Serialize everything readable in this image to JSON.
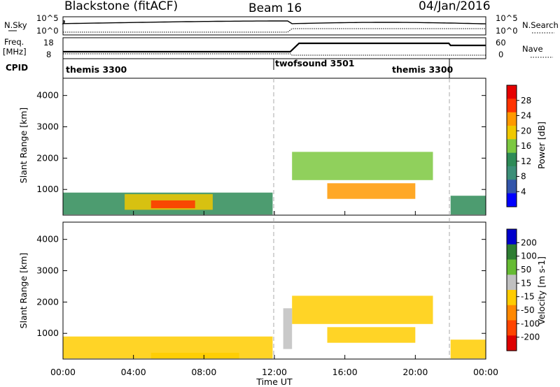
{
  "header": {
    "station": "Blackstone (fitACF)",
    "beam": "Beam 16",
    "date": "04/Jan/2016"
  },
  "noise_panel": {
    "left_label": "N.Sky",
    "left_ticks": [
      "10^5",
      "10^0"
    ],
    "right_ticks": [
      "10^5",
      "10^0"
    ],
    "right_label": "N.Search"
  },
  "freq_panel": {
    "left_label_line1": "Freq.",
    "left_label_line2": "[MHz]",
    "left_ticks": [
      "18",
      "8"
    ],
    "right_ticks": [
      "60",
      "0"
    ],
    "right_label": "Nave"
  },
  "cpid_panel": {
    "label": "CPID",
    "segments": [
      "themis 3300",
      "twofsound 3501",
      "themis 3300"
    ]
  },
  "chart_data": [
    {
      "type": "heatmap",
      "name": "power",
      "ylabel": "Slant Range [km]",
      "yticks": [
        "4000",
        "3000",
        "2000",
        "1000"
      ],
      "ylim": [
        180,
        4550
      ],
      "xlim": [
        0,
        24
      ],
      "colorbar_label": "Power [dB]",
      "colorbar_ticks": [
        "28",
        "24",
        "20",
        "16",
        "12",
        "8",
        "4"
      ],
      "colorbar_colors": [
        "#e60000",
        "#ff3300",
        "#ff9900",
        "#f0c800",
        "#7cc840",
        "#2e8b57",
        "#3c8f78",
        "#3355aa",
        "#0000ff"
      ],
      "regions": [
        {
          "t0": 0.0,
          "t1": 11.9,
          "r0": 200,
          "r1": 900,
          "level": 10
        },
        {
          "t0": 3.5,
          "t1": 8.5,
          "r0": 350,
          "r1": 850,
          "level": 18
        },
        {
          "t0": 5.0,
          "t1": 7.5,
          "r0": 400,
          "r1": 650,
          "level": 26
        },
        {
          "t0": 13.0,
          "t1": 21.0,
          "r0": 1300,
          "r1": 2200,
          "level": 16
        },
        {
          "t0": 15.0,
          "t1": 20.0,
          "r0": 700,
          "r1": 1200,
          "level": 22
        },
        {
          "t0": 22.0,
          "t1": 24.0,
          "r0": 200,
          "r1": 800,
          "level": 12
        }
      ]
    },
    {
      "type": "heatmap",
      "name": "velocity",
      "ylabel": "Slant Range [km]",
      "yticks": [
        "4000",
        "3000",
        "2000",
        "1000"
      ],
      "ylim": [
        180,
        4550
      ],
      "xlim": [
        0,
        24
      ],
      "colorbar_label": "Velocity [m s-1]",
      "colorbar_ticks": [
        "200",
        "100",
        "50",
        "15",
        "-15",
        "-50",
        "-100",
        "-200"
      ],
      "colorbar_colors": [
        "#0000cc",
        "#2e7d32",
        "#66bb33",
        "#c0c0c0",
        "#ffcc00",
        "#ff8800",
        "#ff4400",
        "#dd0000"
      ],
      "regions": [
        {
          "t0": 0.0,
          "t1": 11.9,
          "r0": 200,
          "r1": 900,
          "level": 0
        },
        {
          "t0": 5.0,
          "t1": 10.0,
          "r0": 200,
          "r1": 380,
          "level": -40
        },
        {
          "t0": 13.0,
          "t1": 21.0,
          "r0": 1300,
          "r1": 2200,
          "level": 0
        },
        {
          "t0": 15.0,
          "t1": 20.0,
          "r0": 700,
          "r1": 1200,
          "level": 0
        },
        {
          "t0": 12.5,
          "t1": 13.0,
          "r0": 500,
          "r1": 1800,
          "level": 40
        },
        {
          "t0": 22.0,
          "t1": 24.0,
          "r0": 200,
          "r1": 800,
          "level": 0
        }
      ]
    }
  ],
  "time_axis": {
    "label": "Time UT",
    "ticks": [
      "00:00",
      "04:00",
      "08:00",
      "12:00",
      "16:00",
      "20:00",
      "00:00"
    ]
  }
}
